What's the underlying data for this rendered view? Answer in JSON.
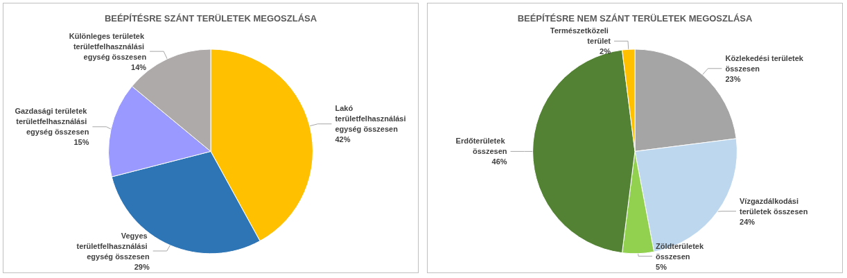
{
  "chart_data": [
    {
      "type": "pie",
      "title": "BEÉPÍTÉSRE SZÁNT TERÜLETEK MEGOSZLÁSA",
      "categories": [
        "Lakó területfelhasználási egység összesen",
        "Vegyes területfelhasználási egység összesen",
        "Gazdasági területek területfelhasználási egység összesen",
        "Különleges területek területfelhasználási egység összesen"
      ],
      "values": [
        42,
        29,
        15,
        14
      ],
      "value_labels": [
        "42%",
        "29%",
        "15%",
        "14%"
      ],
      "colors": [
        "#ffc000",
        "#2e75b6",
        "#9999ff",
        "#aeaaaa"
      ],
      "legend": false
    },
    {
      "type": "pie",
      "title": "BEÉPÍTÉSRE NEM SZÁNT TERÜLETEK MEGOSZLÁSA",
      "categories": [
        "Közlekedési területek összesen",
        "Vízgazdálkodási területek összesen",
        "Zöldterületek összesen",
        "Erdőterületek összesen",
        "Természetközeli terület"
      ],
      "values": [
        23,
        24,
        5,
        46,
        2
      ],
      "value_labels": [
        "23%",
        "24%",
        "5%",
        "46%",
        "2%"
      ],
      "colors": [
        "#a5a5a5",
        "#bdd7ee",
        "#92d050",
        "#548235",
        "#ffc000"
      ],
      "legend": false
    }
  ]
}
